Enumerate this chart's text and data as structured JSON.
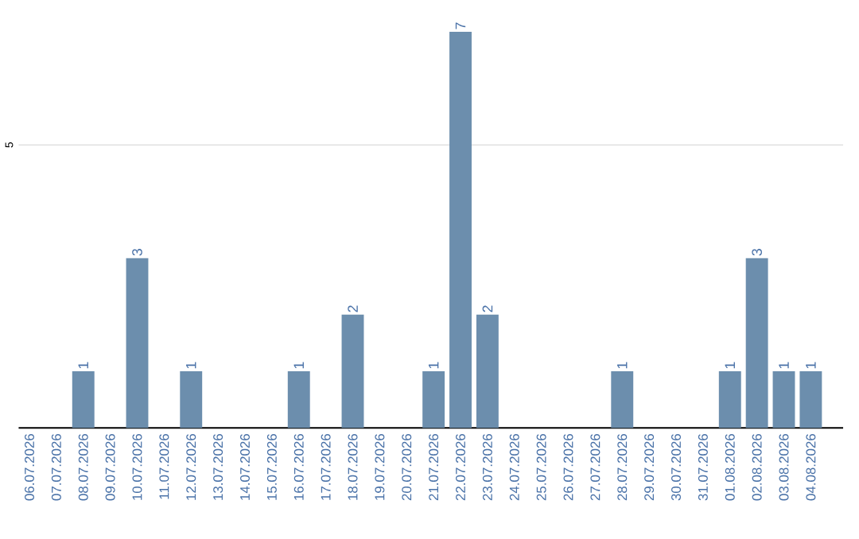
{
  "chart_data": {
    "type": "bar",
    "categories": [
      "06.07.2026",
      "07.07.2026",
      "08.07.2026",
      "09.07.2026",
      "10.07.2026",
      "11.07.2026",
      "12.07.2026",
      "13.07.2026",
      "14.07.2026",
      "15.07.2026",
      "16.07.2026",
      "17.07.2026",
      "18.07.2026",
      "19.07.2026",
      "20.07.2026",
      "21.07.2026",
      "22.07.2026",
      "23.07.2026",
      "24.07.2026",
      "25.07.2026",
      "26.07.2026",
      "27.07.2026",
      "28.07.2026",
      "29.07.2026",
      "30.07.2026",
      "31.07.2026",
      "01.08.2026",
      "02.08.2026",
      "03.08.2026",
      "04.08.2026"
    ],
    "values": [
      0,
      0,
      1,
      0,
      3,
      0,
      1,
      0,
      0,
      0,
      1,
      0,
      2,
      0,
      0,
      1,
      7,
      2,
      0,
      0,
      0,
      0,
      1,
      0,
      0,
      0,
      1,
      3,
      1,
      1
    ],
    "value_labels": [
      null,
      null,
      "1",
      null,
      "3",
      null,
      "1",
      null,
      null,
      null,
      "1",
      null,
      "2",
      null,
      null,
      "1",
      "7",
      "2",
      null,
      null,
      null,
      null,
      "1",
      null,
      null,
      null,
      "1",
      "3",
      "1",
      "1"
    ],
    "color": "#6c8ead",
    "ylim": [
      0,
      7
    ],
    "yticks": [
      5
    ],
    "grid": "y"
  }
}
